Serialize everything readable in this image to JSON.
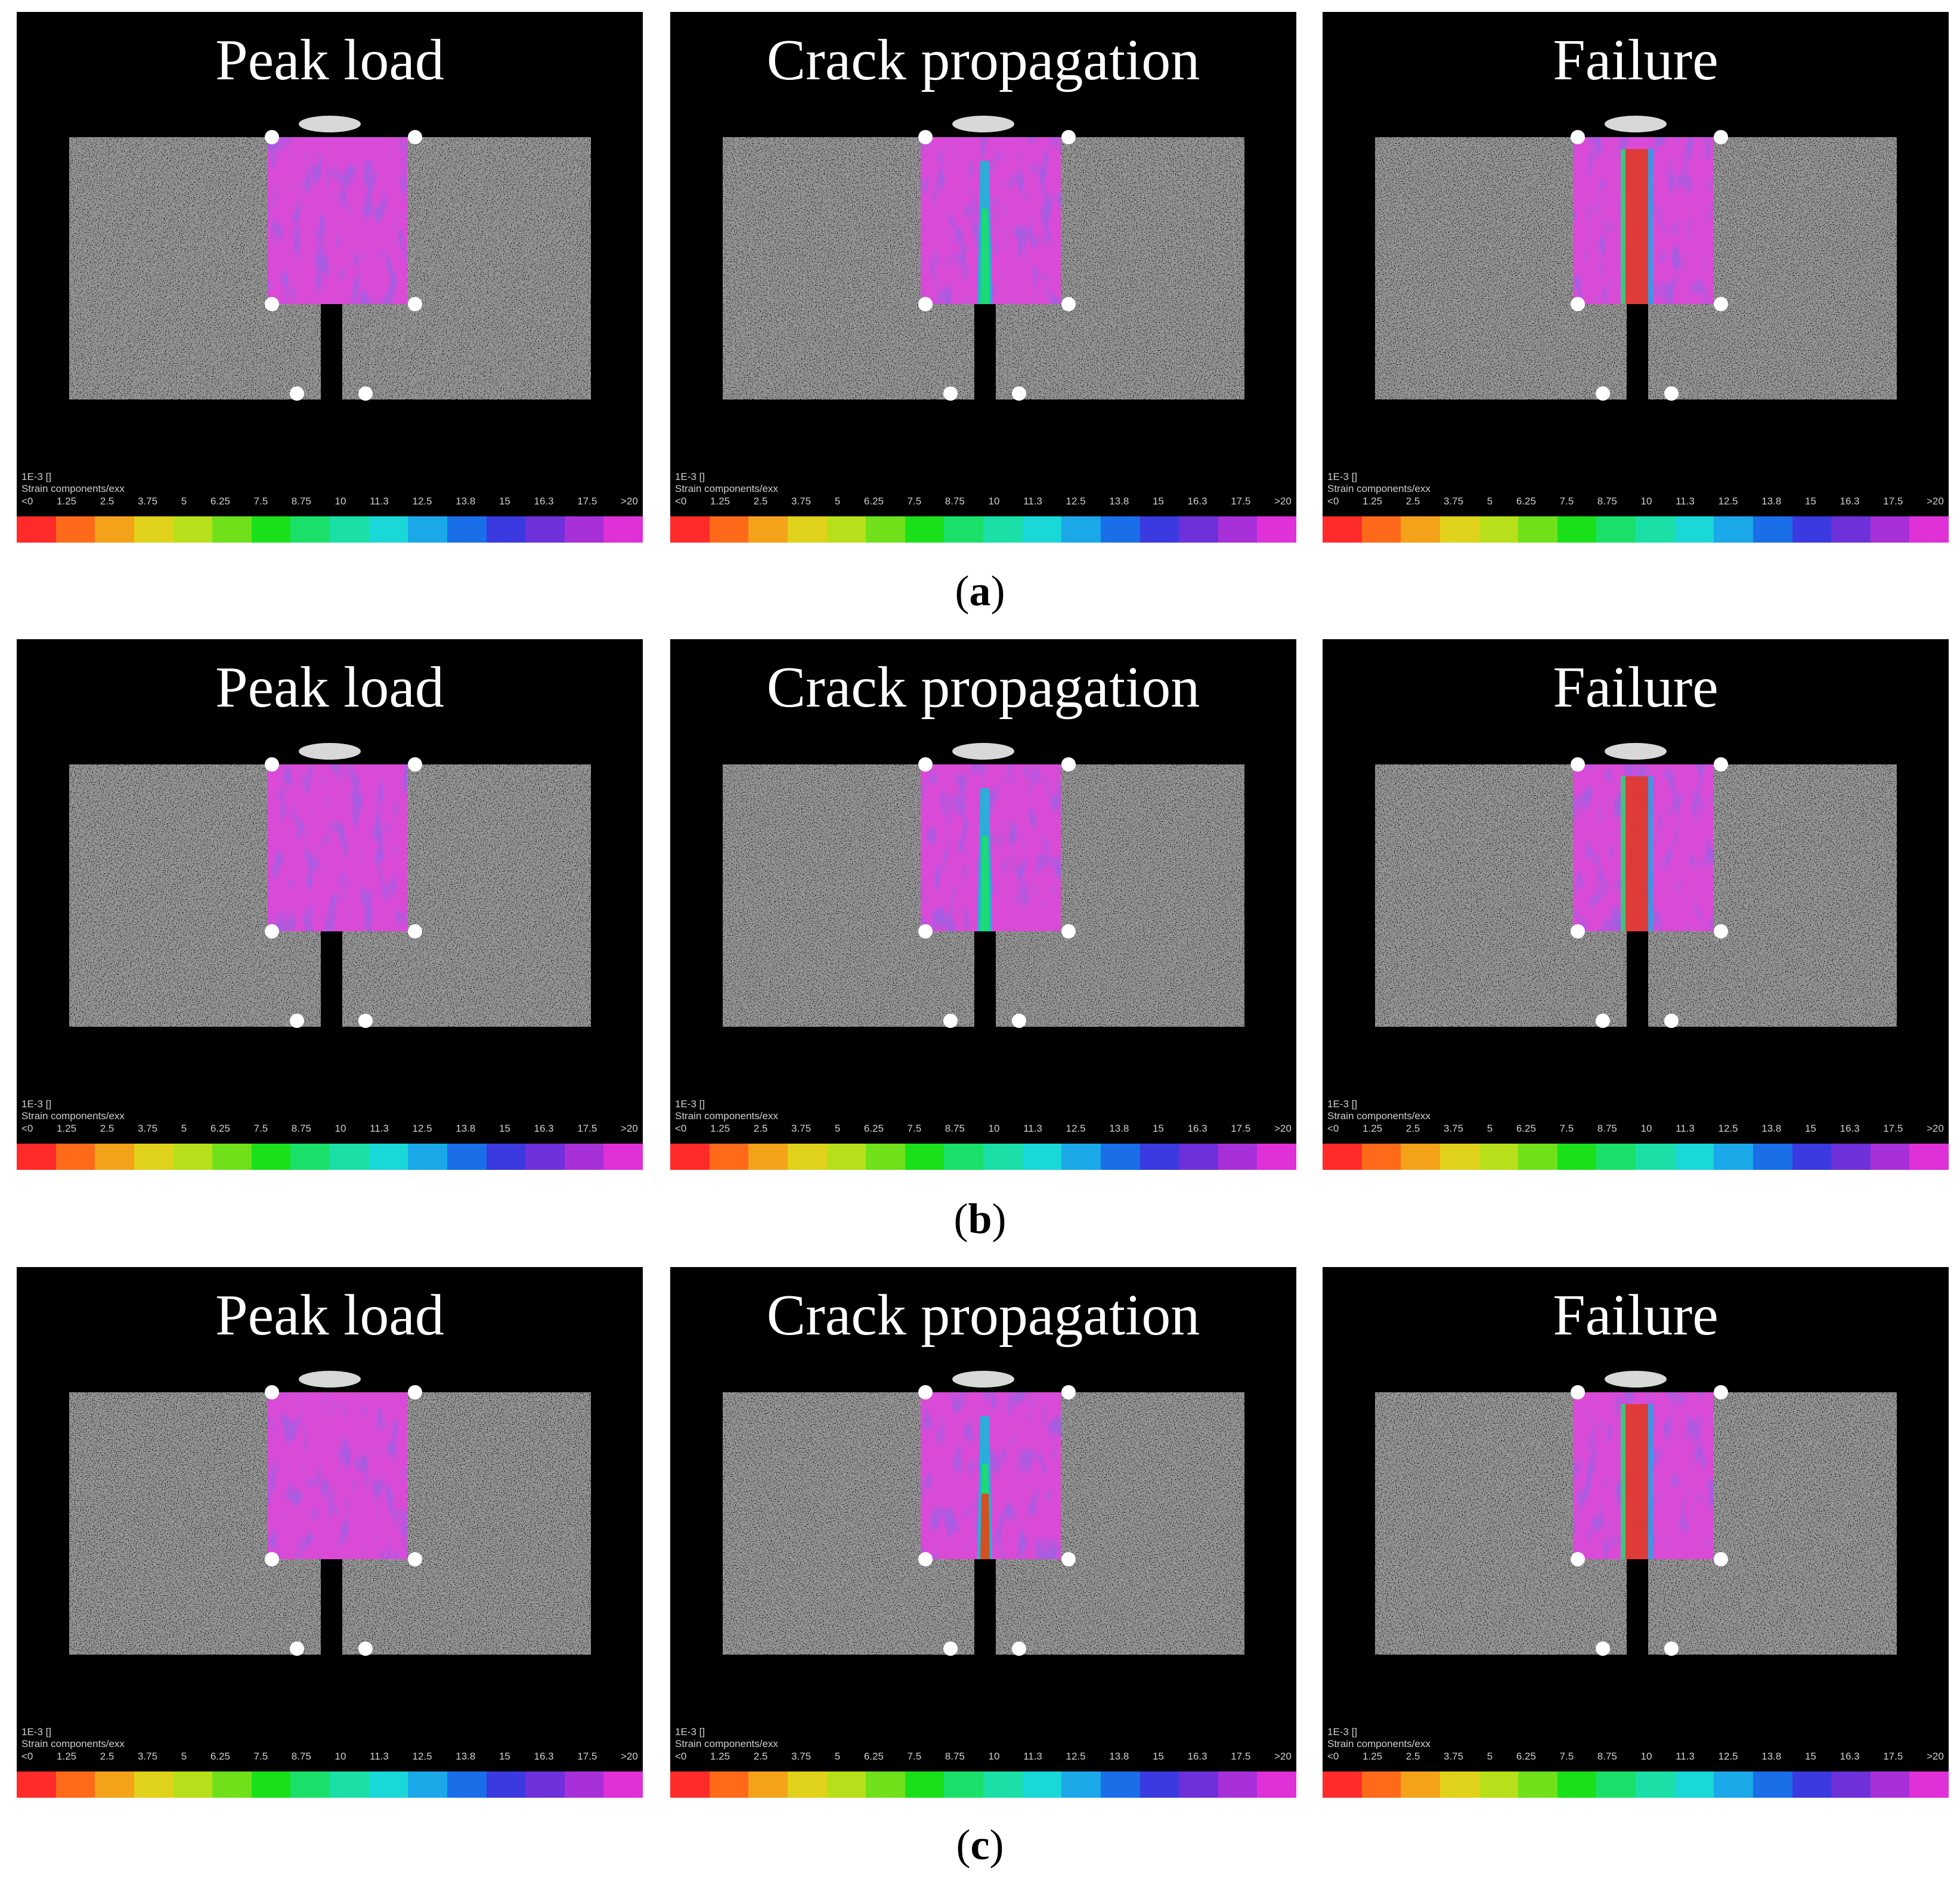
{
  "figure": {
    "rows": [
      {
        "label_open": "(",
        "label_letter": "a",
        "label_close": ")",
        "panels": [
          {
            "title": "Peak load",
            "stage": "peak"
          },
          {
            "title": "Crack propagation",
            "stage": "crack"
          },
          {
            "title": "Failure",
            "stage": "failure"
          }
        ]
      },
      {
        "label_open": "(",
        "label_letter": "b",
        "label_close": ")",
        "panels": [
          {
            "title": "Peak load",
            "stage": "peak"
          },
          {
            "title": "Crack propagation",
            "stage": "crack"
          },
          {
            "title": "Failure",
            "stage": "failure"
          }
        ]
      },
      {
        "label_open": "(",
        "label_letter": "c",
        "label_close": ")",
        "panels": [
          {
            "title": "Peak load",
            "stage": "peak"
          },
          {
            "title": "Crack propagation",
            "stage": "crack"
          },
          {
            "title": "Failure",
            "stage": "failure"
          }
        ]
      }
    ],
    "colorscale": {
      "unit_line": "1E-3 []",
      "component_line": "Strain components/exx",
      "ticks": [
        "<0",
        "1.25",
        "2.5",
        "3.75",
        "5",
        "6.25",
        "7.5",
        "8.75",
        "10",
        "11.3",
        "12.5",
        "13.8",
        "15",
        "16.3",
        "17.5",
        ">20"
      ],
      "colors": [
        "#ff2a2a",
        "#ff6a1a",
        "#f3a21a",
        "#e0d21a",
        "#b7e01a",
        "#6fe01a",
        "#1ae01a",
        "#1ae06a",
        "#1ae0a8",
        "#1ad8d8",
        "#1aa8e8",
        "#1a6ee8",
        "#3a3ae0",
        "#6e30d8",
        "#a830d8",
        "#e030d8"
      ]
    }
  }
}
